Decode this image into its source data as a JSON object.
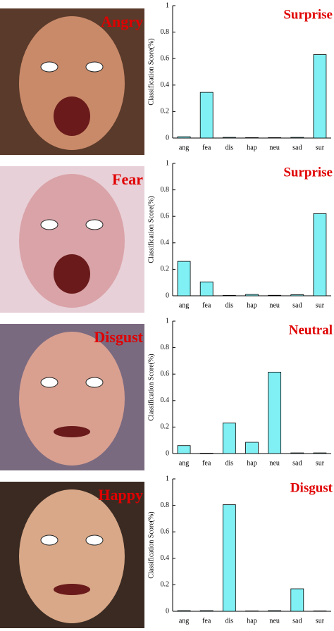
{
  "chart_data": [
    {
      "type": "bar",
      "annotation": "Angry",
      "title": "Surprise",
      "ylabel": "Classification Score(%)",
      "categories": [
        "ang",
        "fea",
        "dis",
        "hap",
        "neu",
        "sad",
        "sur"
      ],
      "values": [
        0.01,
        0.345,
        0.005,
        0.003,
        0.003,
        0.005,
        0.63
      ],
      "color": "#80f0f4",
      "ylim": [
        0,
        1
      ],
      "yticks": [
        0,
        0.2,
        0.4,
        0.6,
        0.8,
        1
      ]
    },
    {
      "type": "bar",
      "annotation": "Fear",
      "title": "Surprise",
      "ylabel": "Classification Score(%)",
      "categories": [
        "ang",
        "fea",
        "dis",
        "hap",
        "neu",
        "sad",
        "sur"
      ],
      "values": [
        0.26,
        0.105,
        0.003,
        0.01,
        0.004,
        0.008,
        0.62
      ],
      "color": "#80f0f4",
      "ylim": [
        0,
        1
      ],
      "yticks": [
        0,
        0.2,
        0.4,
        0.6,
        0.8,
        1
      ]
    },
    {
      "type": "bar",
      "annotation": "Disgust",
      "title": "Neutral",
      "ylabel": "Classification Score(%)",
      "categories": [
        "ang",
        "fea",
        "dis",
        "hap",
        "neu",
        "sad",
        "sur"
      ],
      "values": [
        0.06,
        0.003,
        0.23,
        0.085,
        0.615,
        0.005,
        0.005
      ],
      "color": "#80f0f4",
      "ylim": [
        0,
        1
      ],
      "yticks": [
        0,
        0.2,
        0.4,
        0.6,
        0.8,
        1
      ]
    },
    {
      "type": "bar",
      "annotation": "Happy",
      "title": "Disgust",
      "ylabel": "Classification Score(%)",
      "categories": [
        "ang",
        "fea",
        "dis",
        "hap",
        "neu",
        "sad",
        "sur"
      ],
      "values": [
        0.005,
        0.005,
        0.805,
        0.003,
        0.005,
        0.17,
        0.003
      ],
      "color": "#80f0f4",
      "ylim": [
        0,
        1
      ],
      "yticks": [
        0,
        0.2,
        0.4,
        0.6,
        0.8,
        1
      ]
    }
  ]
}
